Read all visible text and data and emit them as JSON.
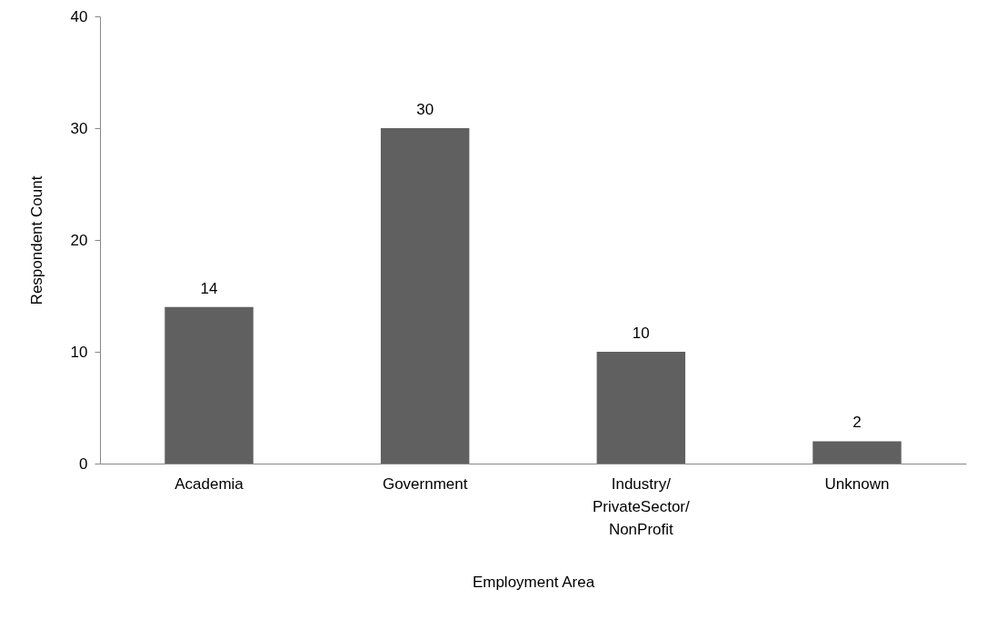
{
  "chart_data": {
    "type": "bar",
    "xlabel": "Employment Area",
    "ylabel": "Respondent Count",
    "categories": [
      "Academia",
      "Government",
      "Industry/PrivateSector/NonProfit",
      "Unknown"
    ],
    "values": [
      14,
      30,
      10,
      2
    ],
    "color": "#606060",
    "ylim": [
      0,
      40
    ],
    "yticks": [
      0,
      10,
      20,
      30,
      40
    ],
    "grid": false,
    "data_labels": true
  }
}
